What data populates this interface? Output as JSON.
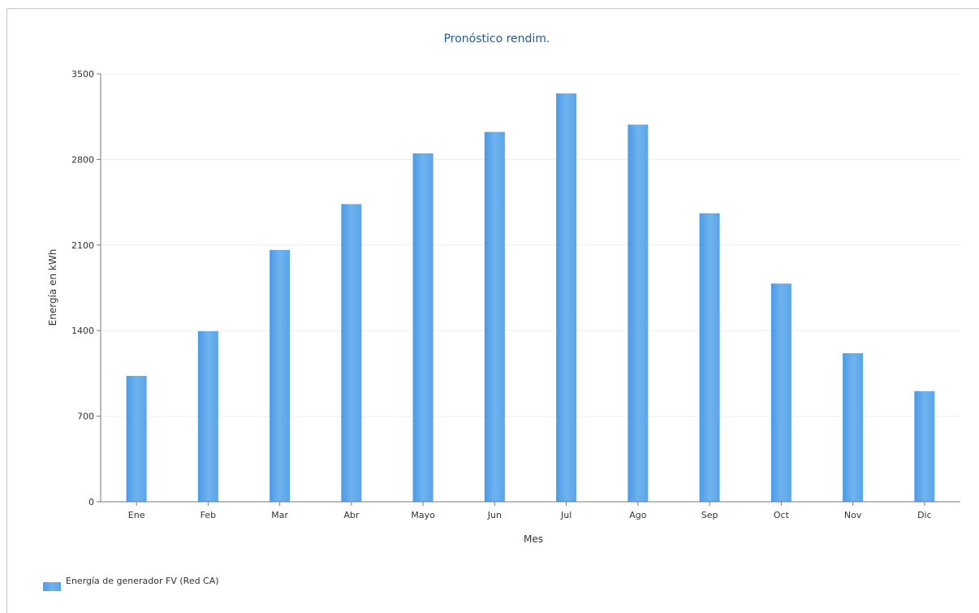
{
  "colors": {
    "bar_left": "#4a9ae6",
    "bar_mid": "#6fb3ee",
    "bar_right": "#5aa4ea",
    "title": "#1f5b99",
    "axis": "#7a7a7a",
    "grid": "#eeeeee",
    "text": "#333333"
  },
  "chart_data": {
    "type": "bar",
    "title": "Pronóstico rendim.",
    "xlabel": "Mes",
    "ylabel": "Energía en kWh",
    "ylim": [
      0,
      3500
    ],
    "yticks": [
      0,
      700,
      1400,
      2100,
      2800,
      3500
    ],
    "grid": true,
    "legend_position": "bottom-left",
    "categories": [
      "Ene",
      "Feb",
      "Mar",
      "Abr",
      "Mayo",
      "Jun",
      "Jul",
      "Ago",
      "Sep",
      "Oct",
      "Nov",
      "Dic"
    ],
    "series": [
      {
        "name": "Energía de generador FV (Red CA)",
        "values": [
          1030,
          1395,
          2060,
          2435,
          2850,
          3025,
          3340,
          3085,
          2360,
          1785,
          1215,
          905
        ]
      }
    ]
  }
}
